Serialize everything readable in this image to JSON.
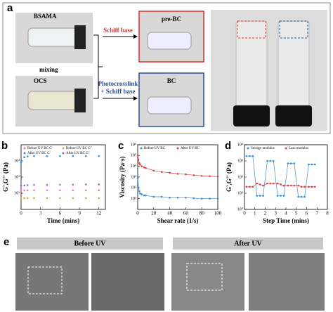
{
  "panel_a": {
    "label": "a",
    "bsama": "BSAMA",
    "mixing": "mixing",
    "ocs": "OCS",
    "schiff": "Schiff base",
    "photo": "Photocrosslink",
    "plus": "+ Schiff base",
    "prebc": "pre-BC",
    "bc": "BC"
  },
  "panel_e": {
    "label": "e",
    "before": "Before UV",
    "after": "After UV"
  },
  "chart_data": [
    {
      "type": "scatter",
      "label": "b",
      "xlabel": "Time (mins)",
      "ylabel": "G',G'' (Pa)",
      "xlim": [
        0,
        13
      ],
      "xticks": [
        0,
        3,
        6,
        9,
        12
      ],
      "ylim": [
        1,
        10000
      ],
      "log_y": true,
      "yticks": [
        {
          "value": 10,
          "label": "10¹"
        },
        {
          "value": 100,
          "label": "10²"
        },
        {
          "value": 1000,
          "label": "10³"
        }
      ],
      "series": [
        {
          "name": "Before UV  BC G'",
          "color": "#e87fa8",
          "x": [
            0,
            0.5,
            1,
            2,
            4,
            6,
            8,
            10,
            12
          ],
          "values": [
            15,
            15,
            15,
            15,
            15,
            15,
            15,
            15,
            15
          ]
        },
        {
          "name": "Before UV  BC G''",
          "color": "#f0a040",
          "x": [
            0,
            0.5,
            1,
            2,
            4,
            6,
            8,
            10,
            12
          ],
          "values": [
            5,
            5,
            5,
            5,
            5,
            5,
            5,
            5,
            5
          ]
        },
        {
          "name": "After UV  BC G'",
          "color": "#3a8fd9",
          "x": [
            0,
            0.5,
            1,
            2,
            4,
            6,
            8,
            10,
            12
          ],
          "values": [
            800,
            1700,
            1900,
            2000,
            2000,
            2000,
            2000,
            2000,
            2000
          ]
        },
        {
          "name": "After UV  BC G''",
          "color": "#8b6fc9",
          "x": [
            0,
            0.5,
            1,
            2,
            4,
            6,
            8,
            10,
            12
          ],
          "values": [
            30,
            30,
            32,
            33,
            33,
            34,
            34,
            35,
            35
          ]
        }
      ]
    },
    {
      "type": "line",
      "label": "c",
      "xlabel": "Shear rate (1/s)",
      "ylabel": "Viscosity (Pa·s)",
      "xlim": [
        0,
        100
      ],
      "xticks": [
        0,
        20,
        40,
        60,
        80,
        100
      ],
      "ylim": [
        1,
        1000000
      ],
      "log_y": true,
      "yticks": [
        {
          "value": 10,
          "label": "10¹"
        },
        {
          "value": 100,
          "label": "10²"
        },
        {
          "value": 1000,
          "label": "10³"
        },
        {
          "value": 10000,
          "label": "10⁴"
        },
        {
          "value": 100000,
          "label": "10⁵"
        },
        {
          "value": 1000000,
          "label": "10⁶"
        }
      ],
      "series": [
        {
          "name": "Before UV BC",
          "color": "#3a8fd9",
          "x": [
            0.1,
            1,
            2,
            3,
            5,
            8,
            10,
            20,
            30,
            40,
            50,
            60,
            70,
            80,
            90,
            100
          ],
          "values": [
            800,
            100,
            50,
            30,
            25,
            20,
            20,
            15,
            15,
            12,
            12,
            12,
            11,
            10,
            10,
            10
          ]
        },
        {
          "name": "After UV BC",
          "color": "#e04040",
          "x": [
            0.1,
            1,
            2,
            3,
            5,
            8,
            10,
            20,
            30,
            40,
            50,
            60,
            70,
            80,
            90,
            100
          ],
          "values": [
            100000,
            40000,
            20000,
            15000,
            10000,
            8000,
            7000,
            4000,
            3000,
            2500,
            2000,
            1800,
            1500,
            1300,
            1200,
            1100
          ]
        }
      ]
    },
    {
      "type": "line",
      "label": "d",
      "xlabel": "Step Time (mins)",
      "ylabel": "G',G'' (Pa)",
      "xlim": [
        0,
        8
      ],
      "xticks": [
        0,
        1,
        2,
        3,
        4,
        5,
        6,
        7,
        8
      ],
      "ylim": [
        1,
        10000
      ],
      "log_y": true,
      "yticks": [
        {
          "value": 1,
          "label": "10⁰"
        },
        {
          "value": 10,
          "label": "10¹"
        },
        {
          "value": 100,
          "label": "10²"
        },
        {
          "value": 1000,
          "label": "10³"
        },
        {
          "value": 10000,
          "label": "10⁴"
        }
      ],
      "series": [
        {
          "name": "Storage modulus",
          "color": "#3a8fd9",
          "x": [
            0.2,
            0.5,
            0.8,
            1.2,
            1.5,
            1.8,
            2.2,
            2.5,
            2.8,
            3.2,
            3.5,
            3.8,
            4.2,
            4.5,
            4.8,
            5.2,
            5.5,
            5.8,
            6.2,
            6.5,
            6.8
          ],
          "values": [
            2000,
            2000,
            2000,
            7,
            7,
            7,
            1000,
            1000,
            1000,
            7,
            7,
            7,
            700,
            700,
            700,
            6,
            6,
            6,
            600,
            600,
            600
          ]
        },
        {
          "name": "Loss modulus",
          "color": "#e04040",
          "x": [
            0.2,
            0.5,
            0.8,
            1.2,
            1.5,
            1.8,
            2.2,
            2.5,
            2.8,
            3.2,
            3.5,
            3.8,
            4.2,
            4.5,
            4.8,
            5.2,
            5.5,
            5.8,
            6.2,
            6.5,
            6.8
          ],
          "values": [
            25,
            25,
            25,
            40,
            35,
            30,
            40,
            40,
            40,
            40,
            35,
            30,
            30,
            30,
            30,
            30,
            25,
            25,
            25,
            25,
            25
          ]
        }
      ]
    }
  ]
}
